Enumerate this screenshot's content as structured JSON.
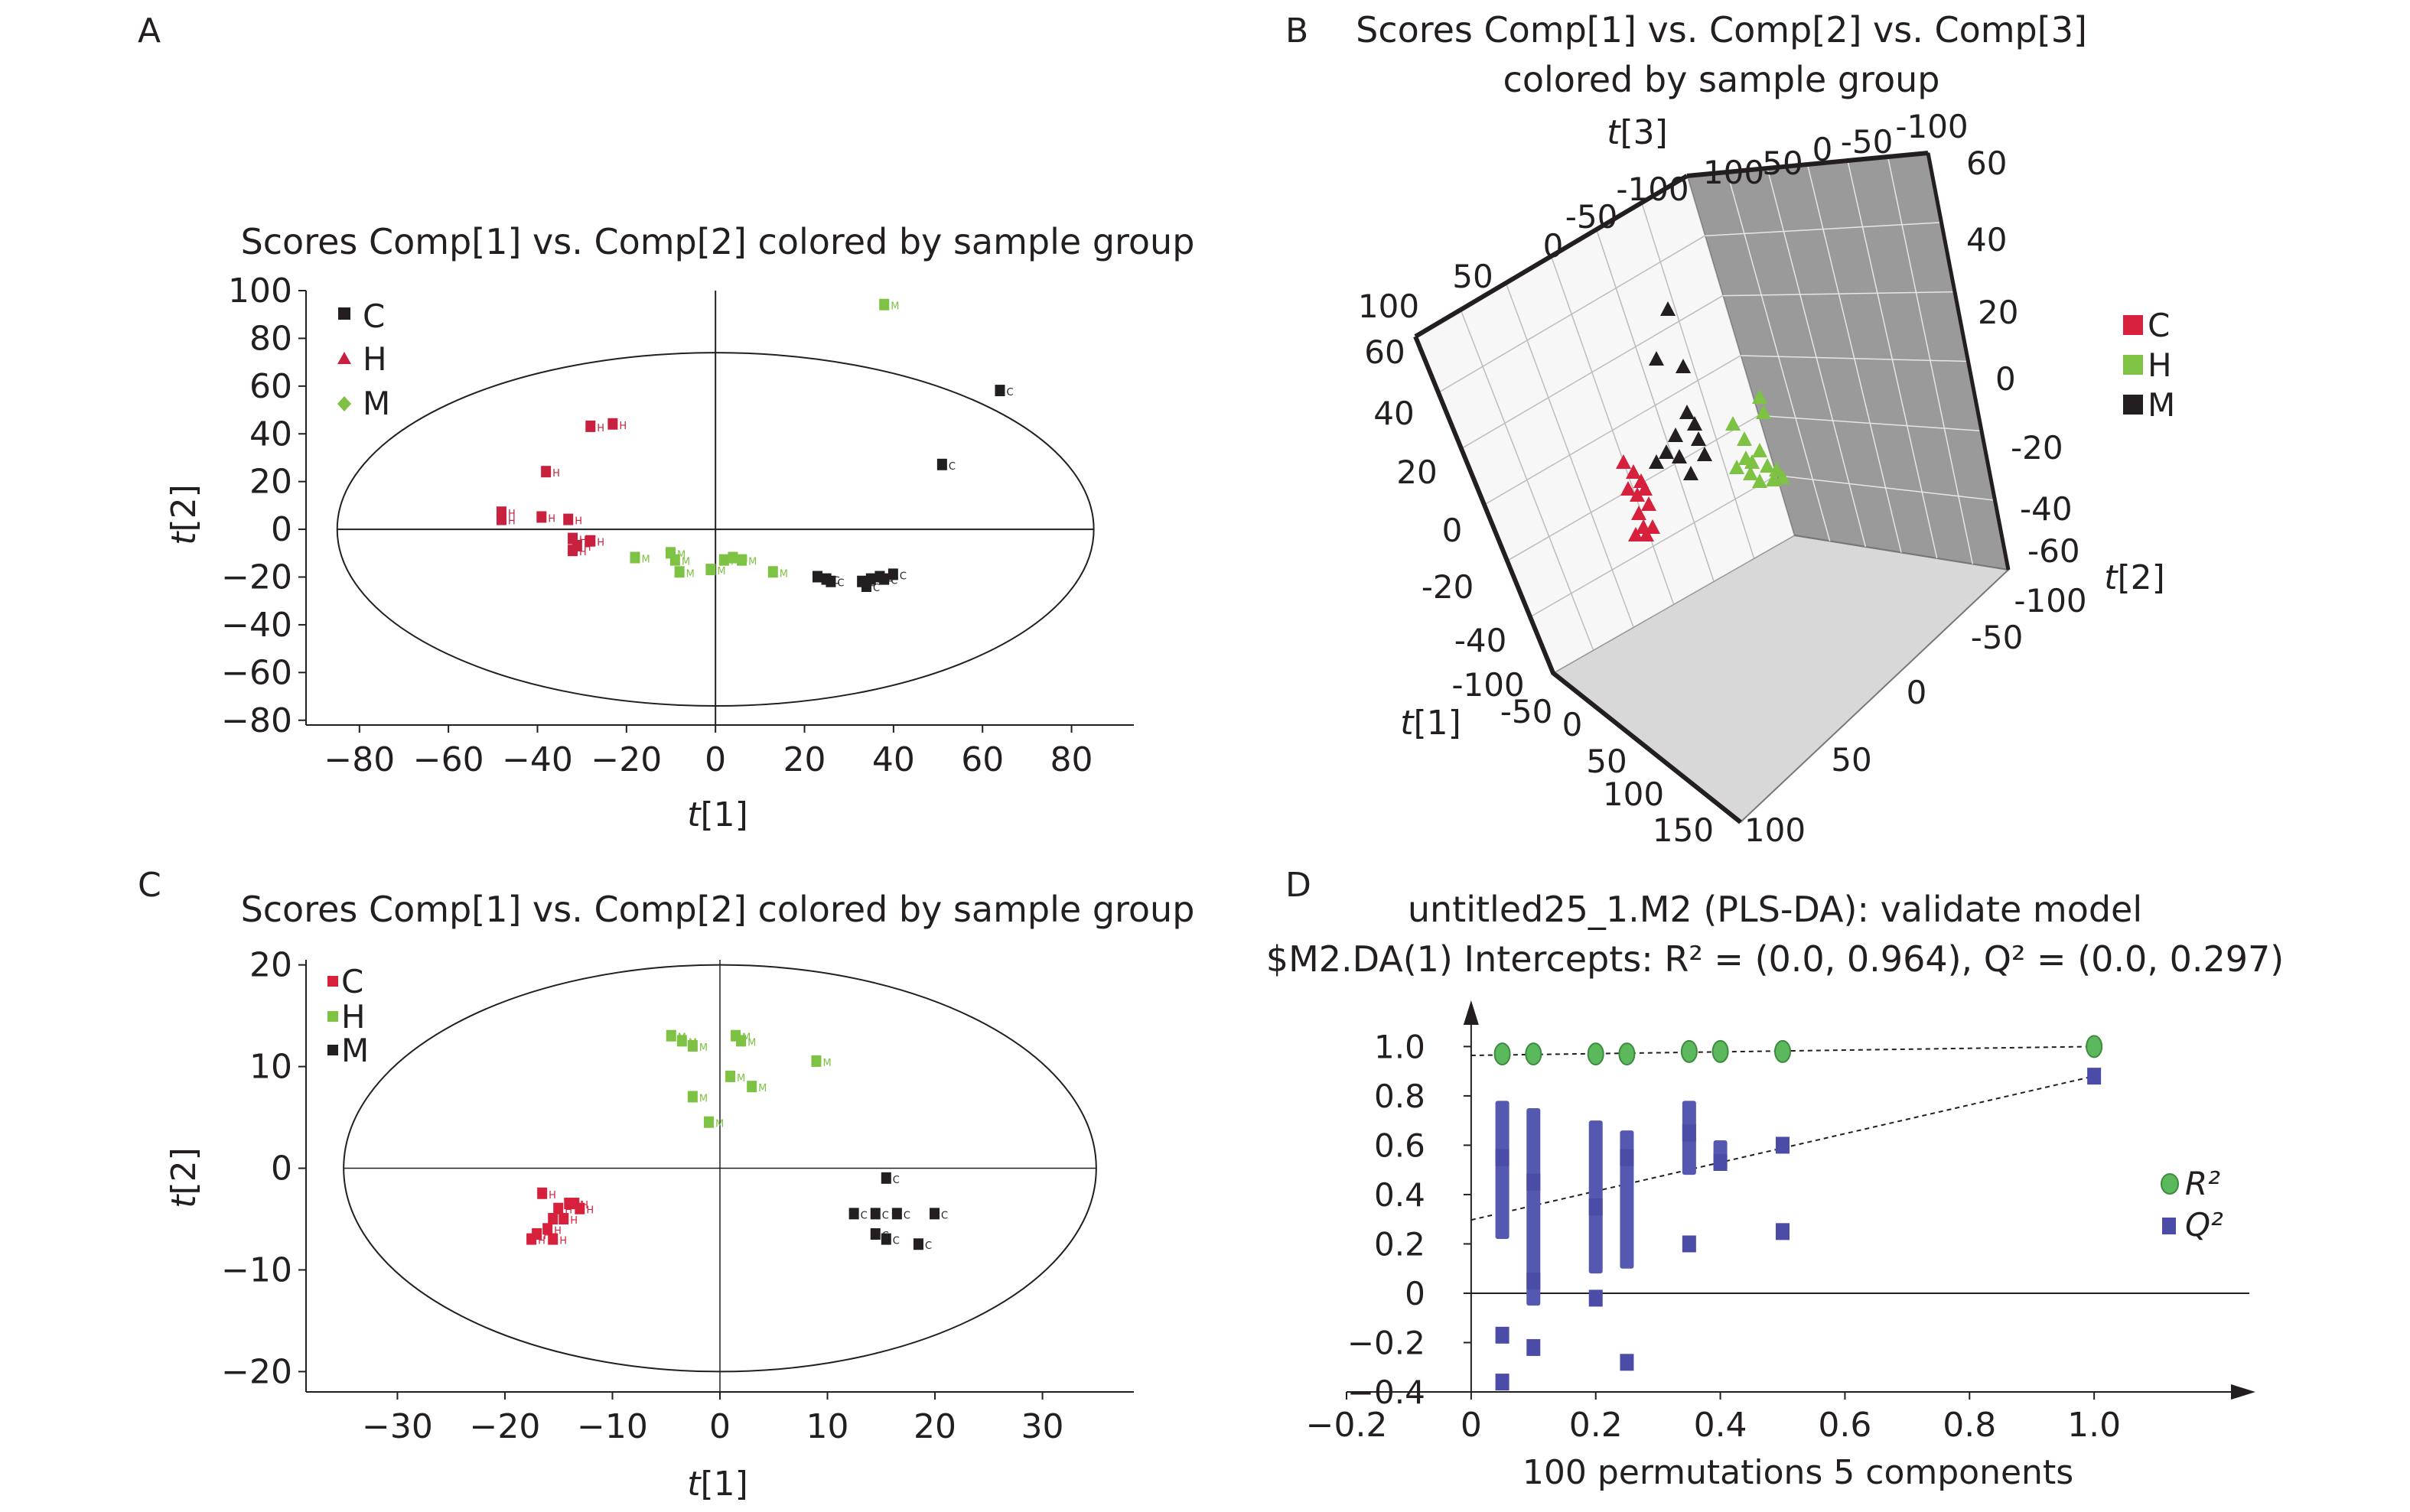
{
  "panels": {
    "A": {
      "letter": "A",
      "title": "Scores Comp[1] vs. Comp[2] colored by sample group"
    },
    "B": {
      "letter": "B",
      "title_line1": "Scores Comp[1] vs. Comp[2] vs. Comp[3]",
      "title_line2": "colored by sample group"
    },
    "C": {
      "letter": "C",
      "title": "Scores Comp[1] vs. Comp[2] colored by sample group"
    },
    "D": {
      "letter": "D",
      "title_line1": "untitled25_1.M2 (PLS-DA): validate model",
      "title_line2": "$M2.DA(1) Intercepts: R² = (0.0, 0.964), Q² = (0.0, 0.297)"
    }
  },
  "chart_data": [
    {
      "id": "A",
      "type": "scatter",
      "title": "Scores Comp[1] vs. Comp[2] colored by sample group",
      "xlabel": "t[1]",
      "ylabel": "t[2]",
      "xlim": [
        -92,
        94
      ],
      "ylim": [
        -82,
        100
      ],
      "xticks": [
        -80,
        -60,
        -40,
        -20,
        0,
        20,
        40,
        60,
        80
      ],
      "yticks": [
        -80,
        -60,
        -40,
        -20,
        0,
        20,
        40,
        60,
        80,
        100
      ],
      "ellipse": {
        "rx": 85,
        "ry": 74
      },
      "legend": [
        {
          "label": "C",
          "color": "#231f20",
          "marker": "square"
        },
        {
          "label": "H",
          "color": "#c8213f",
          "marker": "triangle"
        },
        {
          "label": "M",
          "color": "#7dc242",
          "marker": "diamond"
        }
      ],
      "series": [
        {
          "name": "C",
          "color": "#231f20",
          "point_label": "C",
          "x": [
            64,
            51,
            23,
            25,
            26,
            33,
            34,
            35,
            37,
            38,
            40
          ],
          "y": [
            58,
            27,
            -20,
            -21,
            -22,
            -22,
            -24,
            -21,
            -20,
            -21,
            -19
          ]
        },
        {
          "name": "H",
          "color": "#c8213f",
          "point_label": "H",
          "x": [
            -28,
            -23,
            -38,
            -48,
            -48,
            -39,
            -33,
            -32,
            -31,
            -28,
            -32
          ],
          "y": [
            43,
            44,
            24,
            7,
            4,
            5,
            4,
            -4,
            -7,
            -5,
            -9
          ]
        },
        {
          "name": "M",
          "color": "#7dc242",
          "point_label": "M",
          "x": [
            38,
            -18,
            -10,
            -9,
            -8,
            -1,
            2,
            4,
            6,
            13
          ],
          "y": [
            94,
            -12,
            -10,
            -13,
            -18,
            -17,
            -13,
            -12,
            -13,
            -18
          ]
        }
      ]
    },
    {
      "id": "B",
      "type": "scatter",
      "title": "Scores Comp[1] vs. Comp[2] vs. Comp[3] colored by sample group",
      "xlabel": "t[1]",
      "ylabel": "t[2]",
      "zlabel": "t[3]",
      "t1_ticks": [
        "-100",
        "-50",
        "0",
        "50",
        "100",
        "150"
      ],
      "t2_ticks": [
        "-100",
        "-50",
        "0",
        "50",
        "100"
      ],
      "t3_ticks": [
        "-100",
        "-50",
        "0",
        "50",
        "100"
      ],
      "left_ticks": [
        "60",
        "40",
        "20",
        "0",
        "-20",
        "-40"
      ],
      "right_ticks": [
        "60",
        "40",
        "20",
        "0",
        "-20",
        "-40",
        "-60"
      ],
      "legend": [
        {
          "label": "C",
          "color": "#d6203c"
        },
        {
          "label": "H",
          "color": "#7dc242"
        },
        {
          "label": "M",
          "color": "#231f20"
        }
      ],
      "series": [
        {
          "name": "C",
          "color": "#d6203c",
          "marker": "triangle"
        },
        {
          "name": "H",
          "color": "#7dc242",
          "marker": "triangle"
        },
        {
          "name": "M",
          "color": "#231f20",
          "marker": "triangle"
        }
      ]
    },
    {
      "id": "C",
      "type": "scatter",
      "title": "Scores Comp[1] vs. Comp[2] colored by sample group",
      "xlabel": "t[1]",
      "ylabel": "t[2]",
      "xlim": [
        -38.5,
        38.5
      ],
      "ylim": [
        -22,
        20.5
      ],
      "xticks": [
        -30,
        -20,
        -10,
        0,
        10,
        20,
        30
      ],
      "yticks": [
        -20,
        -10,
        0,
        10,
        20
      ],
      "ellipse": {
        "rx": 35,
        "ry": 20
      },
      "legend": [
        {
          "label": "C",
          "color": "#d6203c"
        },
        {
          "label": "H",
          "color": "#7dc242"
        },
        {
          "label": "M",
          "color": "#231f20"
        }
      ],
      "series": [
        {
          "name": "C",
          "color": "#d6203c",
          "point_label": "H",
          "x": [
            -16.5,
            -15,
            -14,
            -13.5,
            -13,
            -14.5,
            -15.5,
            -16,
            -17,
            -17.5,
            -15.5
          ],
          "y": [
            -2.5,
            -4,
            -3.5,
            -3.5,
            -4,
            -5,
            -5,
            -6,
            -6.5,
            -7,
            -7
          ]
        },
        {
          "name": "H",
          "color": "#7dc242",
          "point_label": "M",
          "x": [
            -4.5,
            -3.5,
            -2.5,
            1.5,
            2,
            9,
            1,
            -2.5,
            -1,
            3
          ],
          "y": [
            13,
            12.5,
            12,
            13,
            12.5,
            10.5,
            9,
            7,
            4.5,
            8
          ]
        },
        {
          "name": "M",
          "color": "#231f20",
          "point_label": "C",
          "x": [
            15.5,
            12.5,
            14.5,
            16.5,
            20,
            14.5,
            15.5,
            18.5
          ],
          "y": [
            -1,
            -4.5,
            -4.5,
            -4.5,
            -4.5,
            -6.5,
            -7,
            -7.5
          ]
        }
      ]
    },
    {
      "id": "D",
      "type": "scatter",
      "title": "untitled25_1.M2 (PLS-DA): validate model",
      "subtitle": "$M2.DA(1) Intercepts: R² = (0.0, 0.964), Q² = (0.0, 0.297)",
      "xlabel": "100 permutations 5 components",
      "ylabel": "",
      "xlim": [
        -0.2,
        1.2
      ],
      "ylim": [
        -0.4,
        1.15
      ],
      "xticks": [
        -0.2,
        0,
        0.2,
        0.4,
        0.6,
        0.8,
        1.0
      ],
      "xtick_labels": [
        "-0.2",
        "0",
        "0.2",
        "0.4",
        "0.6",
        "0.8",
        "1.0"
      ],
      "yticks": [
        -0.4,
        -0.2,
        0,
        0.2,
        0.4,
        0.6,
        0.8,
        1.0
      ],
      "ytick_labels": [
        "-0.4",
        "-0.2",
        "0",
        "0.2",
        "0.4",
        "0.6",
        "0.8",
        "1.0"
      ],
      "legend": [
        {
          "label": "R²",
          "color": "#5cb85c",
          "marker": "circle"
        },
        {
          "label": "Q²",
          "color": "#4b4ba8",
          "marker": "square"
        }
      ],
      "series": [
        {
          "name": "R²",
          "color": "#5cb85c",
          "x": [
            0.05,
            0.1,
            0.2,
            0.25,
            0.35,
            0.4,
            0.5,
            1.0
          ],
          "y": [
            0.97,
            0.97,
            0.97,
            0.97,
            0.98,
            0.98,
            0.98,
            1.0
          ]
        },
        {
          "name": "Q²",
          "color": "#4b4ba8",
          "x": [
            0.05,
            0.05,
            0.05,
            0.1,
            0.1,
            0.1,
            0.2,
            0.2,
            0.25,
            0.25,
            0.35,
            0.35,
            0.4,
            0.5,
            0.5,
            1.0
          ],
          "y": [
            0.55,
            -0.17,
            -0.36,
            0.45,
            0.05,
            -0.22,
            0.35,
            -0.02,
            0.55,
            -0.28,
            0.65,
            0.2,
            0.53,
            0.6,
            0.25,
            0.88
          ]
        }
      ],
      "ranges": [
        {
          "x": 0.05,
          "y0": 0.22,
          "y1": 0.78
        },
        {
          "x": 0.1,
          "y0": -0.05,
          "y1": 0.75
        },
        {
          "x": 0.2,
          "y0": 0.08,
          "y1": 0.7
        },
        {
          "x": 0.25,
          "y0": 0.1,
          "y1": 0.66
        },
        {
          "x": 0.35,
          "y0": 0.48,
          "y1": 0.78
        },
        {
          "x": 0.4,
          "y0": 0.5,
          "y1": 0.62
        }
      ],
      "regression": [
        {
          "name": "R²",
          "x": [
            0,
            1.0
          ],
          "y": [
            0.964,
            1.0
          ]
        },
        {
          "name": "Q²",
          "x": [
            0,
            1.0
          ],
          "y": [
            0.297,
            0.88
          ]
        }
      ]
    }
  ]
}
